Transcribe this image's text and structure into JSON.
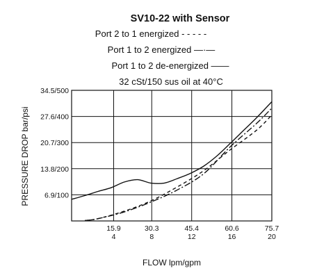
{
  "chart_data": {
    "type": "line",
    "title": "SV10-22 with Sensor",
    "legend": [
      {
        "label": "Port 2 to 1 energized - - - - -",
        "series": "Port 2 to 1 energized"
      },
      {
        "label": "Port 1 to 2 energized —·—",
        "series": "Port 1 to 2 energized"
      },
      {
        "label": "Port 1 to 2 de-energized ——",
        "series": "Port 1 to 2 de-energized"
      }
    ],
    "legend_placement": "top, under title",
    "note": "32 cSt/150 sus oil at 40°C",
    "xlabel": "FLOW lpm/gpm",
    "ylabel": "PRESSURE DROP bar/psi",
    "x_unit": "lpm",
    "y_unit": "bar",
    "xlim": [
      0,
      75.7
    ],
    "ylim": [
      0,
      34.5
    ],
    "grid": true,
    "x_ticks": [
      {
        "value": 15.9,
        "label_top": "15.9",
        "label_bottom": "4"
      },
      {
        "value": 30.3,
        "label_top": "30.3",
        "label_bottom": "8"
      },
      {
        "value": 45.4,
        "label_top": "45.4",
        "label_bottom": "12"
      },
      {
        "value": 60.6,
        "label_top": "60.6",
        "label_bottom": "16"
      },
      {
        "value": 75.7,
        "label_top": "75.7",
        "label_bottom": "20"
      }
    ],
    "y_ticks": [
      {
        "value": 6.9,
        "label": "6.9/100"
      },
      {
        "value": 13.8,
        "label": "13.8/200"
      },
      {
        "value": 20.7,
        "label": "20.7/300"
      },
      {
        "value": 27.6,
        "label": "27.6/400"
      },
      {
        "value": 34.5,
        "label": "34.5/500"
      }
    ],
    "series": [
      {
        "name": "Port 2 to 1 energized",
        "style": "dashed",
        "color": "#111111",
        "x": [
          5,
          10,
          20,
          30,
          40,
          50,
          60,
          70,
          75.7
        ],
        "y": [
          0.1,
          0.6,
          2.6,
          5.3,
          9.0,
          13.3,
          18.8,
          24.0,
          28.0
        ]
      },
      {
        "name": "Port 1 to 2 energized",
        "style": "dash-dot",
        "color": "#111111",
        "x": [
          5,
          10,
          20,
          30,
          40,
          50,
          60,
          70,
          75.7
        ],
        "y": [
          0.1,
          0.6,
          2.4,
          5.0,
          8.2,
          12.5,
          19.6,
          25.8,
          29.8
        ]
      },
      {
        "name": "Port 1 to 2 de-energized",
        "style": "solid",
        "color": "#111111",
        "x": [
          0,
          5,
          10,
          15,
          20,
          25,
          30,
          35,
          40,
          45,
          50,
          55,
          60,
          65,
          70,
          75.7
        ],
        "y": [
          5.7,
          6.7,
          7.8,
          8.8,
          10.3,
          10.9,
          10.0,
          10.0,
          11.2,
          12.6,
          14.5,
          17.2,
          20.5,
          23.9,
          27.3,
          31.5
        ]
      }
    ]
  }
}
